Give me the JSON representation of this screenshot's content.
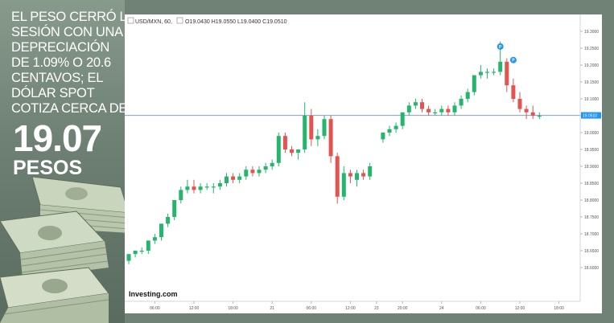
{
  "headline": {
    "lines": [
      "EL PESO CERRÓ LA",
      "SESIÓN CON UNA",
      "DEPRECIACIÓN",
      "DE 1.09% O 20.6",
      "CENTAVOS; EL",
      "DÓLAR SPOT",
      "COTIZA CERCA DE"
    ],
    "value": "19.07",
    "unit": "PESOS"
  },
  "colors": {
    "up": "#26b56c",
    "down": "#e3534f",
    "marker": "#2196f3",
    "hline": "#7e9be0"
  },
  "chart_data": {
    "type": "candlestick",
    "symbol_label": "USD/MXN, 60,",
    "ohlc_label": "O19.0430 H19.0550 L19.0400 C19.0510",
    "watermark": "Investing.com",
    "last_price_label": "19.0510",
    "last_price": 19.051,
    "ylim": [
      18.5,
      19.35
    ],
    "yticks": [
      18.6,
      18.65,
      18.7,
      18.75,
      18.8,
      18.85,
      18.9,
      18.95,
      19.0,
      19.05,
      19.1,
      19.15,
      19.2,
      19.25,
      19.3
    ],
    "ytick_labels": [
      "18.6000",
      "18.6500",
      "18.7000",
      "18.7500",
      "18.8000",
      "18.8500",
      "18.9000",
      "18.9500",
      "19.0000",
      "19.0500",
      "19.1000",
      "19.1500",
      "19.2000",
      "19.2500",
      "19.3000"
    ],
    "xticks": [
      {
        "i": 4,
        "label": "06:00"
      },
      {
        "i": 10,
        "label": "12:00"
      },
      {
        "i": 16,
        "label": "18:00"
      },
      {
        "i": 22,
        "label": "21"
      },
      {
        "i": 28,
        "label": "06:00"
      },
      {
        "i": 34,
        "label": "12:00"
      },
      {
        "i": 38,
        "label": "23"
      },
      {
        "i": 42,
        "label": "20:00"
      },
      {
        "i": 48,
        "label": "24"
      },
      {
        "i": 54,
        "label": "06:00"
      },
      {
        "i": 60,
        "label": "12:00"
      },
      {
        "i": 66,
        "label": "18:00"
      }
    ],
    "candles": [
      {
        "o": 18.62,
        "h": 18.64,
        "l": 18.61,
        "c": 18.64
      },
      {
        "o": 18.64,
        "h": 18.65,
        "l": 18.63,
        "c": 18.65
      },
      {
        "o": 18.65,
        "h": 18.66,
        "l": 18.64,
        "c": 18.65
      },
      {
        "o": 18.65,
        "h": 18.68,
        "l": 18.64,
        "c": 18.68
      },
      {
        "o": 18.68,
        "h": 18.7,
        "l": 18.67,
        "c": 18.69
      },
      {
        "o": 18.69,
        "h": 18.73,
        "l": 18.68,
        "c": 18.73
      },
      {
        "o": 18.73,
        "h": 18.76,
        "l": 18.72,
        "c": 18.75
      },
      {
        "o": 18.75,
        "h": 18.8,
        "l": 18.74,
        "c": 18.8
      },
      {
        "o": 18.8,
        "h": 18.84,
        "l": 18.79,
        "c": 18.83
      },
      {
        "o": 18.83,
        "h": 18.86,
        "l": 18.82,
        "c": 18.84
      },
      {
        "o": 18.84,
        "h": 18.86,
        "l": 18.82,
        "c": 18.83
      },
      {
        "o": 18.83,
        "h": 18.85,
        "l": 18.82,
        "c": 18.84
      },
      {
        "o": 18.84,
        "h": 18.85,
        "l": 18.83,
        "c": 18.84
      },
      {
        "o": 18.84,
        "h": 18.85,
        "l": 18.82,
        "c": 18.84
      },
      {
        "o": 18.84,
        "h": 18.86,
        "l": 18.83,
        "c": 18.85
      },
      {
        "o": 18.85,
        "h": 18.88,
        "l": 18.84,
        "c": 18.87
      },
      {
        "o": 18.87,
        "h": 18.88,
        "l": 18.85,
        "c": 18.86
      },
      {
        "o": 18.86,
        "h": 18.88,
        "l": 18.85,
        "c": 18.87
      },
      {
        "o": 18.87,
        "h": 18.9,
        "l": 18.86,
        "c": 18.89
      },
      {
        "o": 18.89,
        "h": 18.9,
        "l": 18.87,
        "c": 18.88
      },
      {
        "o": 18.88,
        "h": 18.9,
        "l": 18.87,
        "c": 18.89
      },
      {
        "o": 18.89,
        "h": 18.91,
        "l": 18.88,
        "c": 18.9
      },
      {
        "o": 18.9,
        "h": 18.92,
        "l": 18.89,
        "c": 18.91
      },
      {
        "o": 18.91,
        "h": 19.0,
        "l": 18.9,
        "c": 18.99
      },
      {
        "o": 18.99,
        "h": 19.0,
        "l": 18.94,
        "c": 18.95
      },
      {
        "o": 18.95,
        "h": 18.96,
        "l": 18.93,
        "c": 18.94
      },
      {
        "o": 18.94,
        "h": 18.95,
        "l": 18.92,
        "c": 18.95
      },
      {
        "o": 18.95,
        "h": 19.09,
        "l": 18.94,
        "c": 19.05
      },
      {
        "o": 19.05,
        "h": 19.07,
        "l": 18.96,
        "c": 18.98
      },
      {
        "o": 18.98,
        "h": 19.01,
        "l": 18.96,
        "c": 18.99
      },
      {
        "o": 18.99,
        "h": 19.05,
        "l": 18.98,
        "c": 19.04
      },
      {
        "o": 19.04,
        "h": 19.05,
        "l": 18.91,
        "c": 18.93
      },
      {
        "o": 18.93,
        "h": 18.94,
        "l": 18.79,
        "c": 18.81
      },
      {
        "o": 18.81,
        "h": 18.9,
        "l": 18.8,
        "c": 18.88
      },
      {
        "o": 18.88,
        "h": 18.89,
        "l": 18.85,
        "c": 18.87
      },
      {
        "o": 18.86,
        "h": 18.89,
        "l": 18.84,
        "c": 18.88
      },
      {
        "o": 18.88,
        "h": 18.89,
        "l": 18.86,
        "c": 18.87
      },
      {
        "o": 18.87,
        "h": 18.91,
        "l": 18.86,
        "c": 18.9
      },
      null,
      {
        "o": 18.98,
        "h": 19.0,
        "l": 18.97,
        "c": 19.0
      },
      {
        "o": 19.0,
        "h": 19.02,
        "l": 18.99,
        "c": 19.01
      },
      {
        "o": 19.01,
        "h": 19.03,
        "l": 19.0,
        "c": 19.02
      },
      {
        "o": 19.02,
        "h": 19.06,
        "l": 19.01,
        "c": 19.06
      },
      {
        "o": 19.06,
        "h": 19.09,
        "l": 19.05,
        "c": 19.08
      },
      {
        "o": 19.08,
        "h": 19.1,
        "l": 19.07,
        "c": 19.09
      },
      {
        "o": 19.09,
        "h": 19.1,
        "l": 19.06,
        "c": 19.07
      },
      {
        "o": 19.07,
        "h": 19.08,
        "l": 19.05,
        "c": 19.06
      },
      {
        "o": 19.06,
        "h": 19.07,
        "l": 19.05,
        "c": 19.06
      },
      {
        "o": 19.06,
        "h": 19.08,
        "l": 19.05,
        "c": 19.07
      },
      {
        "o": 19.07,
        "h": 19.08,
        "l": 19.05,
        "c": 19.06
      },
      {
        "o": 19.06,
        "h": 19.09,
        "l": 19.05,
        "c": 19.08
      },
      {
        "o": 19.08,
        "h": 19.11,
        "l": 19.07,
        "c": 19.1
      },
      {
        "o": 19.1,
        "h": 19.13,
        "l": 19.09,
        "c": 19.12
      },
      {
        "o": 19.12,
        "h": 19.17,
        "l": 19.11,
        "c": 19.17
      },
      {
        "o": 19.17,
        "h": 19.2,
        "l": 19.16,
        "c": 19.18
      },
      {
        "o": 19.18,
        "h": 19.19,
        "l": 19.16,
        "c": 19.18
      },
      {
        "o": 19.18,
        "h": 19.19,
        "l": 19.17,
        "c": 19.18
      },
      {
        "o": 19.18,
        "h": 19.27,
        "l": 19.17,
        "c": 19.21
      },
      {
        "o": 19.21,
        "h": 19.22,
        "l": 19.12,
        "c": 19.14
      },
      {
        "o": 19.14,
        "h": 19.16,
        "l": 19.09,
        "c": 19.1
      },
      {
        "o": 19.1,
        "h": 19.12,
        "l": 19.06,
        "c": 19.07
      },
      {
        "o": 19.07,
        "h": 19.08,
        "l": 19.04,
        "c": 19.06
      },
      {
        "o": 19.06,
        "h": 19.08,
        "l": 19.04,
        "c": 19.05
      },
      {
        "o": 19.05,
        "h": 19.06,
        "l": 19.04,
        "c": 19.05
      }
    ],
    "markers": [
      {
        "i": 57,
        "y": 19.255,
        "label": "P"
      },
      {
        "i": 59,
        "y": 19.215,
        "label": "P"
      }
    ]
  }
}
